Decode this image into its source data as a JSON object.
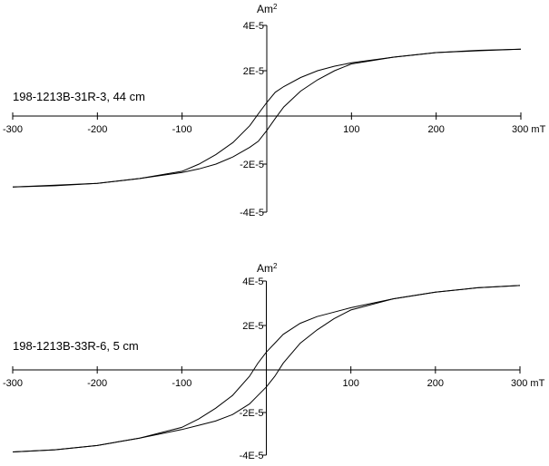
{
  "chart_data": [
    {
      "type": "line",
      "sample_label": "198-1213B-31R-3, 44 cm",
      "y_unit": "Am",
      "y_unit_exp": "2",
      "x_unit": "mT",
      "xlim": [
        -300,
        300
      ],
      "ylim": [
        -4e-05,
        4e-05
      ],
      "x_ticks": [
        -300,
        -200,
        -100,
        100,
        200,
        300
      ],
      "x_tick_labels": [
        "-300",
        "-200",
        "-100",
        "100",
        "200",
        "300 mT"
      ],
      "y_ticks": [
        4e-05,
        2e-05,
        -2e-05,
        -4e-05
      ],
      "y_tick_labels": [
        "4E-5",
        "2E-5",
        "-2E-5",
        "-4E-5"
      ],
      "series": [
        {
          "branch": "descending",
          "x": [
            300,
            250,
            200,
            150,
            100,
            80,
            60,
            40,
            20,
            10,
            0,
            -10,
            -20,
            -40,
            -60,
            -80,
            -100,
            -150,
            -200,
            -250,
            -300
          ],
          "y": [
            2.95e-05,
            2.9e-05,
            2.8e-05,
            2.6e-05,
            2.35e-05,
            2.2e-05,
            2e-05,
            1.7e-05,
            1.3e-05,
            1.05e-05,
            6e-06,
            1e-06,
            -4e-06,
            -1.1e-05,
            -1.6e-05,
            -2e-05,
            -2.3e-05,
            -2.6e-05,
            -2.8e-05,
            -2.88e-05,
            -2.95e-05
          ]
        },
        {
          "branch": "ascending",
          "x": [
            -300,
            -250,
            -200,
            -150,
            -100,
            -80,
            -60,
            -40,
            -20,
            -10,
            0,
            10,
            20,
            40,
            60,
            80,
            100,
            150,
            200,
            250,
            300
          ],
          "y": [
            -2.95e-05,
            -2.9e-05,
            -2.8e-05,
            -2.6e-05,
            -2.35e-05,
            -2.2e-05,
            -2e-05,
            -1.7e-05,
            -1.3e-05,
            -1.05e-05,
            -6e-06,
            -1e-06,
            4e-06,
            1.1e-05,
            1.6e-05,
            2e-05,
            2.3e-05,
            2.6e-05,
            2.8e-05,
            2.88e-05,
            2.95e-05
          ]
        }
      ]
    },
    {
      "type": "line",
      "sample_label": "198-1213B-33R-6, 5 cm",
      "y_unit": "Am",
      "y_unit_exp": "2",
      "x_unit": "mT",
      "xlim": [
        -300,
        300
      ],
      "ylim": [
        -4e-05,
        4e-05
      ],
      "x_ticks": [
        -300,
        -200,
        -100,
        100,
        200,
        300
      ],
      "x_tick_labels": [
        "-300",
        "-200",
        "-100",
        "100",
        "200",
        "300 mT"
      ],
      "y_ticks": [
        4e-05,
        2e-05,
        -2e-05,
        -4e-05
      ],
      "y_tick_labels": [
        "4E-5",
        "2E-5",
        "-2E-5",
        "-4E-5"
      ],
      "series": [
        {
          "branch": "descending",
          "x": [
            300,
            250,
            200,
            150,
            100,
            80,
            60,
            40,
            20,
            10,
            0,
            -10,
            -20,
            -40,
            -60,
            -80,
            -100,
            -150,
            -200,
            -250,
            -300
          ],
          "y": [
            3.8e-05,
            3.7e-05,
            3.5e-05,
            3.2e-05,
            2.8e-05,
            2.6e-05,
            2.4e-05,
            2.1e-05,
            1.6e-05,
            1.2e-05,
            8e-06,
            3e-06,
            -3e-06,
            -1.2e-05,
            -1.8e-05,
            -2.3e-05,
            -2.7e-05,
            -3.2e-05,
            -3.55e-05,
            -3.75e-05,
            -3.85e-05
          ]
        },
        {
          "branch": "ascending",
          "x": [
            -300,
            -250,
            -200,
            -150,
            -100,
            -80,
            -60,
            -40,
            -20,
            -10,
            0,
            10,
            20,
            40,
            60,
            80,
            100,
            150,
            200,
            250,
            300
          ],
          "y": [
            -3.85e-05,
            -3.75e-05,
            -3.55e-05,
            -3.2e-05,
            -2.8e-05,
            -2.6e-05,
            -2.4e-05,
            -2.1e-05,
            -1.6e-05,
            -1.2e-05,
            -8e-06,
            -3e-06,
            3e-06,
            1.2e-05,
            1.8e-05,
            2.3e-05,
            2.7e-05,
            3.2e-05,
            3.5e-05,
            3.7e-05,
            3.8e-05
          ]
        }
      ]
    }
  ]
}
